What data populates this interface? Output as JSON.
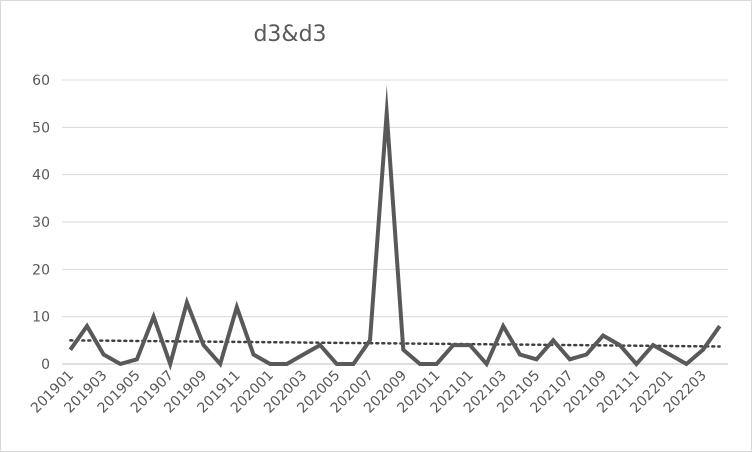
{
  "chart_data": {
    "type": "line",
    "title": "d3&d3",
    "xlabel": "",
    "ylabel": "",
    "ylim": [
      0,
      60
    ],
    "y_ticks": [
      0,
      10,
      20,
      30,
      40,
      50,
      60
    ],
    "grid": "horizontal",
    "legend": "none",
    "x": [
      "201901",
      "201902",
      "201903",
      "201904",
      "201905",
      "201906",
      "201907",
      "201908",
      "201909",
      "201910",
      "201911",
      "201912",
      "202001",
      "202002",
      "202003",
      "202004",
      "202005",
      "202006",
      "202007",
      "202008",
      "202009",
      "202010",
      "202011",
      "202012",
      "202101",
      "202102",
      "202103",
      "202104",
      "202105",
      "202106",
      "202107",
      "202108",
      "202109",
      "202110",
      "202111",
      "202112",
      "202201",
      "202202",
      "202203",
      "202204"
    ],
    "x_tick_labels": [
      "201901",
      "201903",
      "201905",
      "201907",
      "201909",
      "201911",
      "202001",
      "202003",
      "202005",
      "202007",
      "202009",
      "202011",
      "202101",
      "202103",
      "202105",
      "202107",
      "202109",
      "202111",
      "202201",
      "202203"
    ],
    "series": [
      {
        "values": [
          3,
          8,
          2,
          0,
          1,
          10,
          0,
          13,
          4,
          0,
          12,
          2,
          0,
          0,
          2,
          4,
          0,
          0,
          5,
          53,
          3,
          0,
          0,
          4,
          4,
          0,
          8,
          2,
          1,
          5,
          1,
          2,
          6,
          4,
          0,
          4,
          2,
          0,
          3,
          8
        ],
        "color": "#595959",
        "style": "solid"
      }
    ],
    "trendline": {
      "type": "linear",
      "style": "dotted",
      "color": "#404040",
      "start": 5.0,
      "end": 3.7
    }
  }
}
